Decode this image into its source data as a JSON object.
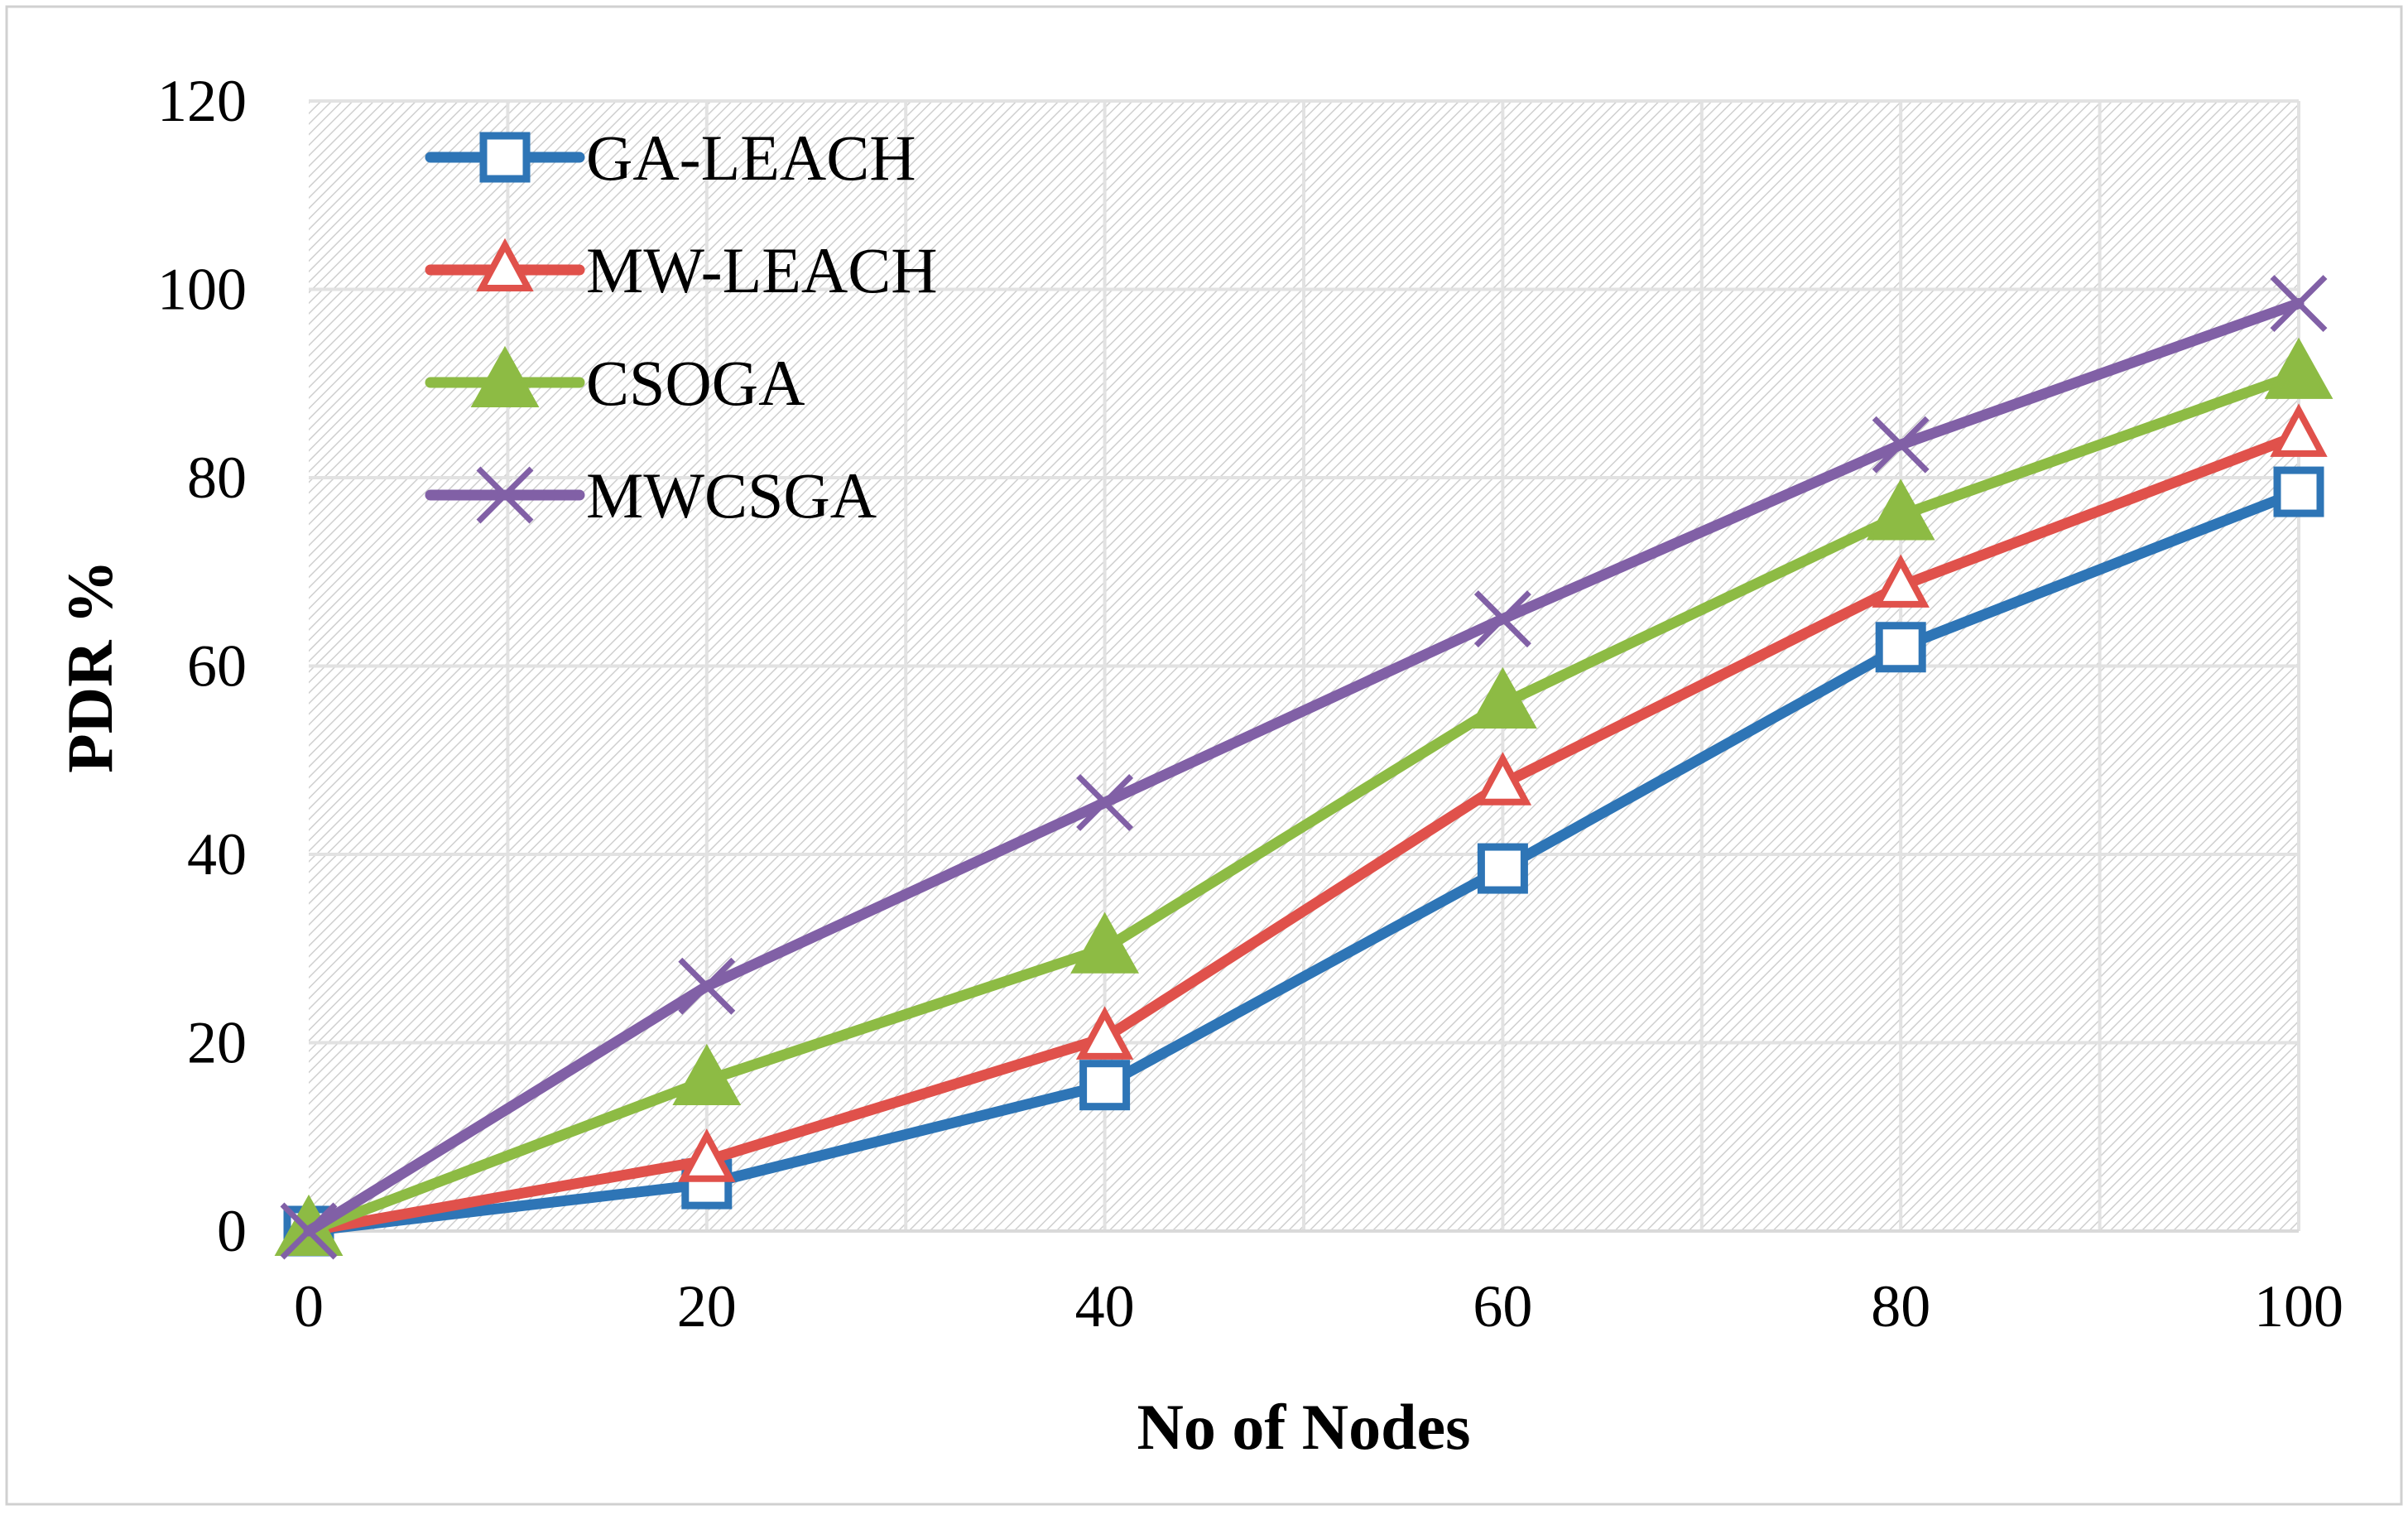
{
  "chart_data": {
    "type": "line",
    "title": "",
    "xlabel": "No of Nodes",
    "ylabel": "PDR %",
    "x": [
      0,
      20,
      40,
      60,
      80,
      100
    ],
    "xlim": [
      0,
      100
    ],
    "ylim": [
      0,
      120
    ],
    "x_ticks": [
      "0",
      "20",
      "40",
      "60",
      "80",
      "100"
    ],
    "y_ticks": [
      "0",
      "20",
      "40",
      "60",
      "80",
      "100",
      "120"
    ],
    "grid": true,
    "legend_position": "top-left",
    "series": [
      {
        "name": "GA-LEACH",
        "color": "#2E75B6",
        "marker": "square-open",
        "values": [
          0,
          5,
          15.5,
          38.5,
          62,
          78.5
        ]
      },
      {
        "name": "MW-LEACH",
        "color": "#E0514B",
        "marker": "triangle-open",
        "values": [
          0,
          7.5,
          20.5,
          47.5,
          68.5,
          84.5
        ]
      },
      {
        "name": "CSOGA",
        "color": "#8DBB44",
        "marker": "triangle-filled",
        "values": [
          0,
          16,
          30,
          56,
          76,
          91
        ]
      },
      {
        "name": "MWCSGA",
        "color": "#8160A6",
        "marker": "x",
        "values": [
          0,
          26,
          45.5,
          65,
          83.5,
          98.5
        ]
      }
    ]
  }
}
